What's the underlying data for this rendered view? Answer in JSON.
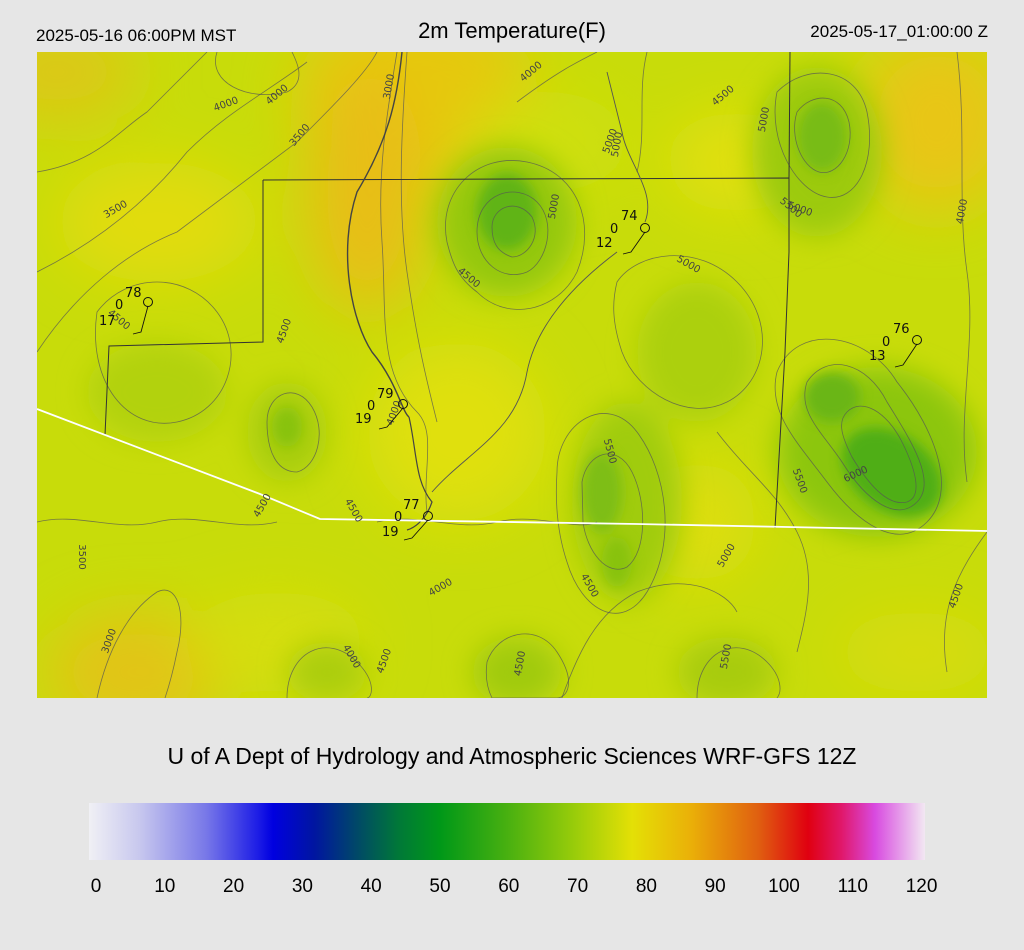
{
  "header": {
    "left": "2025-05-16 06:00PM MST",
    "title": "2m Temperature(F)",
    "right": "2025-05-17_01:00:00 Z"
  },
  "credit": "U of A Dept of Hydrology and Atmospheric Sciences WRF-GFS 12Z",
  "colorbar": {
    "ticks": [
      "0",
      "10",
      "20",
      "30",
      "40",
      "50",
      "60",
      "70",
      "80",
      "90",
      "100",
      "110",
      "120"
    ],
    "range": [
      0,
      120
    ]
  },
  "contour_labels": [
    "4000",
    "4000",
    "3000",
    "4000",
    "4500",
    "5000",
    "3500",
    "3500",
    "5000",
    "5000",
    "4000",
    "5500",
    "5000",
    "4500",
    "4500",
    "4500",
    "5500",
    "5500",
    "6000",
    "4500",
    "4000",
    "4500",
    "4000",
    "4500",
    "5000",
    "4500",
    "3500",
    "3000",
    "4500",
    "4000",
    "5000",
    "5500",
    "4500",
    "5000"
  ],
  "stations": [
    {
      "temp": "78",
      "zero": "0",
      "dew": "17"
    },
    {
      "temp": "74",
      "zero": "0",
      "dew": "12"
    },
    {
      "temp": "76",
      "zero": "0",
      "dew": "13"
    },
    {
      "temp": "79",
      "zero": "0",
      "dew": "19"
    },
    {
      "temp": "77",
      "zero": "0",
      "dew": "19"
    }
  ]
}
